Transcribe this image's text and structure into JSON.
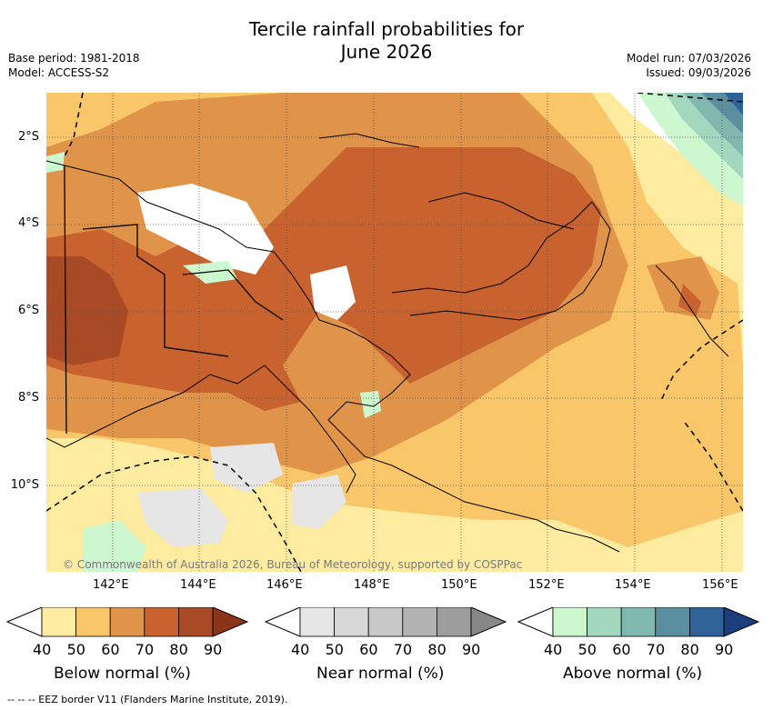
{
  "title_line1": "Tercile rainfall probabilities for",
  "title_line2": "June 2026",
  "base_period": "Base period: 1981-2018",
  "model": "Model: ACCESS-S2",
  "model_run": "Model run: 07/03/2026",
  "issued": "Issued: 09/03/2026",
  "copyright": "© Commonwealth of Australia 2026, Bureau of Meteorology, supported by COSPPac",
  "lat_labels": [
    "2°S",
    "4°S",
    "6°S",
    "8°S",
    "10°S"
  ],
  "lon_labels": [
    "142°E",
    "144°E",
    "146°E",
    "148°E",
    "150°E",
    "152°E",
    "154°E",
    "156°E"
  ],
  "colorbars": [
    {
      "name": "below",
      "label": "Below normal (%)",
      "ticks": [
        "40",
        "50",
        "60",
        "70",
        "80",
        "90"
      ],
      "colors": [
        "#ffffff",
        "#fdeca0",
        "#f9c66a",
        "#e0944a",
        "#c8622e",
        "#a84a26",
        "#8c3418"
      ]
    },
    {
      "name": "near",
      "label": "Near normal (%)",
      "ticks": [
        "40",
        "50",
        "60",
        "70",
        "80",
        "90"
      ],
      "colors": [
        "#ffffff",
        "#e6e6e6",
        "#d7d7d7",
        "#c7c7c7",
        "#b3b3b3",
        "#9d9d9d",
        "#878787"
      ]
    },
    {
      "name": "above",
      "label": "Above normal (%)",
      "ticks": [
        "40",
        "50",
        "60",
        "70",
        "80",
        "90"
      ],
      "colors": [
        "#ffffff",
        "#ccf7cf",
        "#a3d8bf",
        "#80b8b0",
        "#5b8fa0",
        "#30629a",
        "#1b3e7c"
      ]
    }
  ],
  "eez_note": "--  --  -- EEZ border V11 (Flanders Marine Institute, 2019)."
}
